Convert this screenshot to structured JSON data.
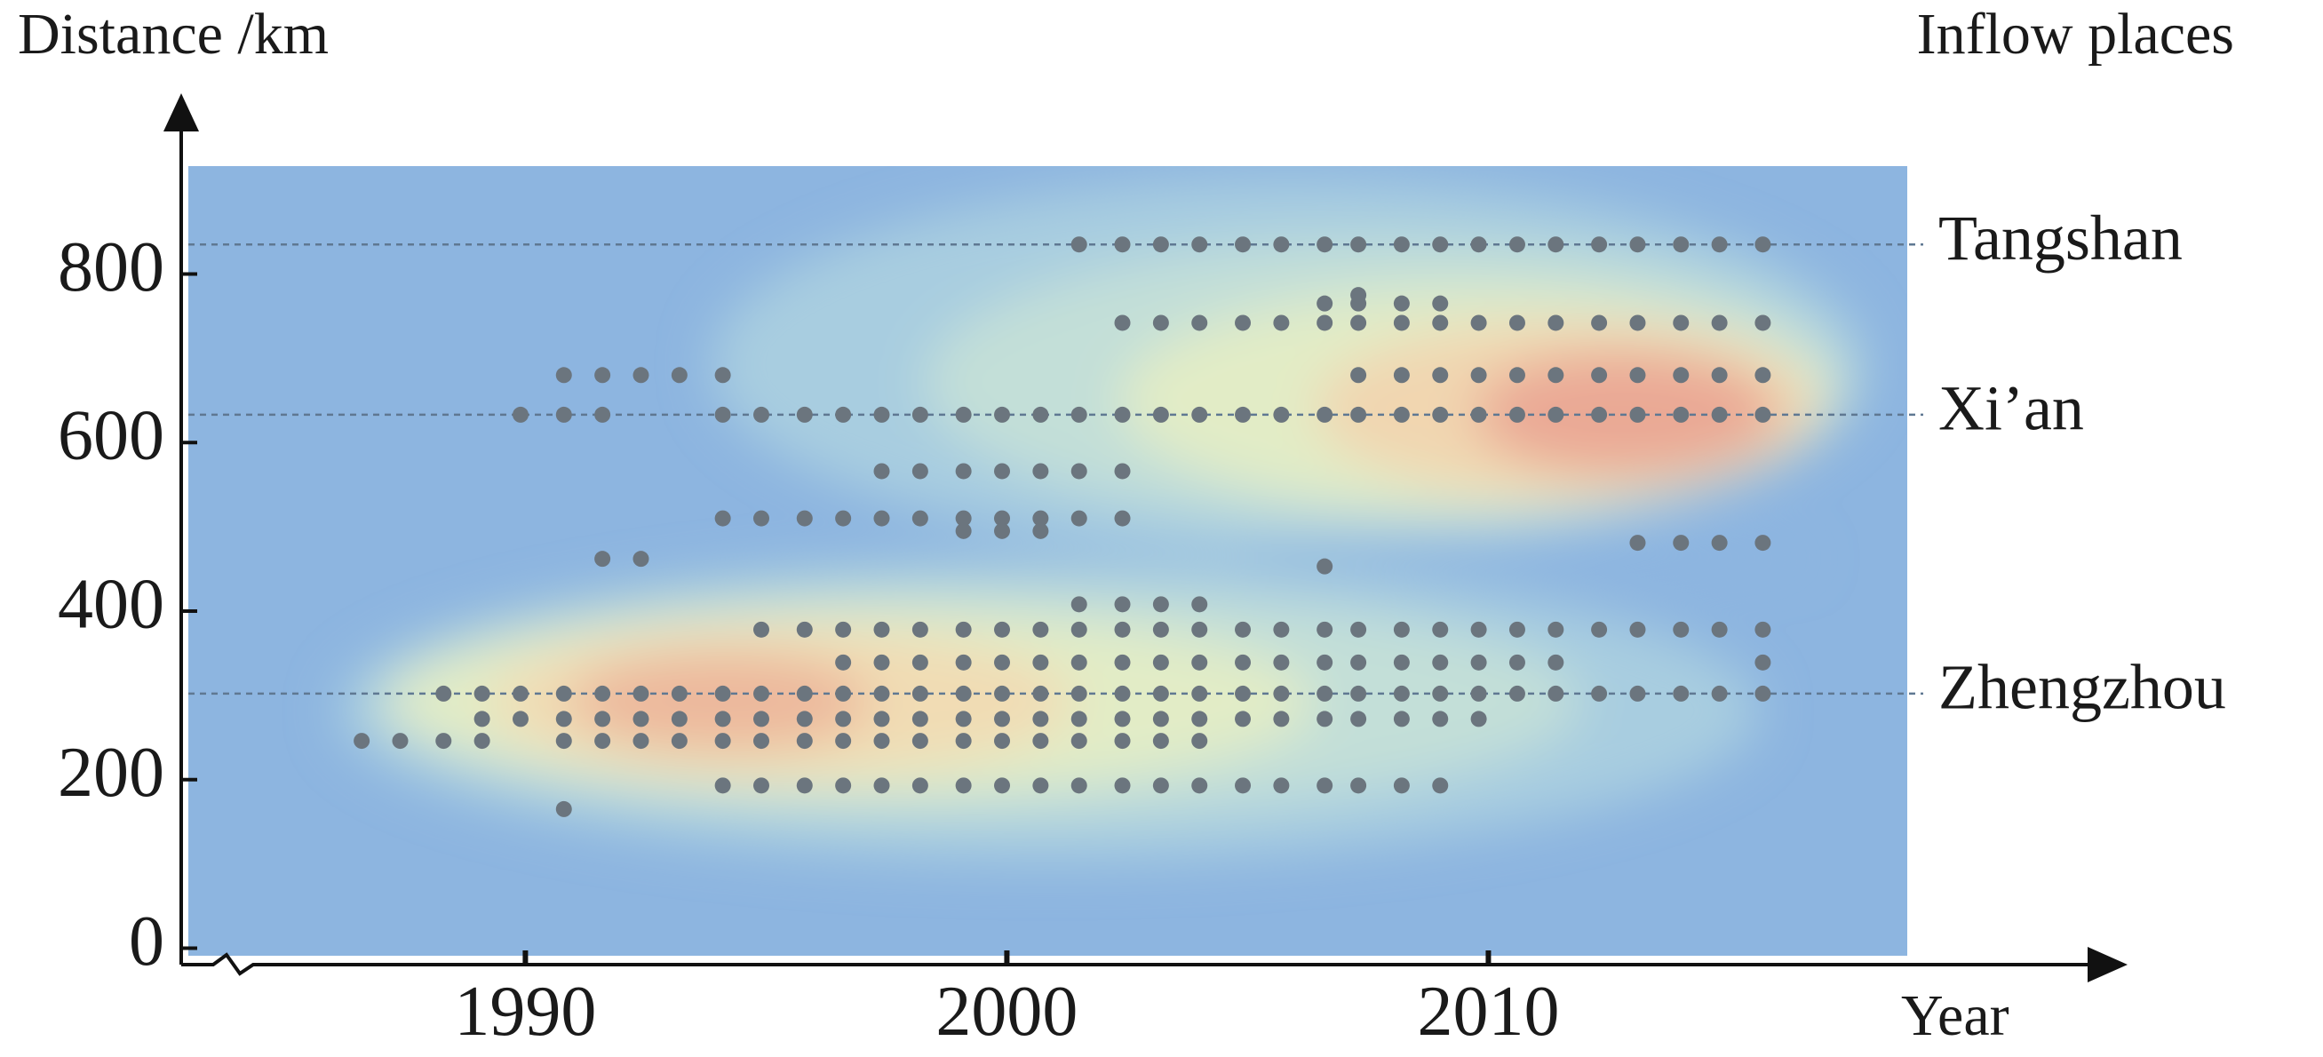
{
  "chart_data": {
    "type": "scatter",
    "y_label": "Distance /km",
    "x_label": "Year",
    "right_label": "Inflow places",
    "xlim": [
      1983.0,
      2018.7
    ],
    "ylim": [
      -9,
      928
    ],
    "xticks": [
      1990,
      2000,
      2010
    ],
    "yticks": [
      0,
      200,
      400,
      600,
      800
    ],
    "color": "#6b757e",
    "background": "#8db5e0",
    "reference_lines": [
      {
        "label": "Tangshan",
        "value": 835
      },
      {
        "label": "Xi’an",
        "value": 633
      },
      {
        "label": "Zhengzhou",
        "value": 302
      }
    ],
    "series": [
      {
        "x": [
          2001.5,
          2002.4,
          2003.2,
          2004.0,
          2004.9,
          2005.7,
          2006.6,
          2007.3,
          2008.2,
          2009.0,
          2009.8,
          2010.6,
          2011.4,
          2012.3,
          2013.1,
          2014.0,
          2014.8,
          2015.7
        ],
        "values": [
          835,
          835,
          835,
          835,
          835,
          835,
          835,
          835,
          835,
          835,
          835,
          835,
          835,
          835,
          835,
          835,
          835,
          835
        ]
      },
      {
        "x": [
          2002.4,
          2003.2,
          2004.0,
          2004.9,
          2005.7,
          2006.6,
          2007.3,
          2008.2,
          2009.0,
          2009.8,
          2010.6,
          2011.4,
          2012.3,
          2013.1,
          2014.0,
          2014.8,
          2015.7
        ],
        "values": [
          742,
          742,
          742,
          742,
          742,
          742,
          742,
          742,
          742,
          742,
          742,
          742,
          742,
          742,
          742,
          742,
          742
        ]
      },
      {
        "x": [
          2006.6,
          2007.3,
          2008.2,
          2009.0
        ],
        "values": [
          765,
          765,
          765,
          765
        ]
      },
      {
        "x": [
          2007.3
        ],
        "values": [
          775
        ]
      },
      {
        "x": [
          1990.8,
          1991.6,
          1992.4,
          1993.2,
          1994.1,
          2007.3,
          2008.2,
          2009.0,
          2009.8,
          2010.6,
          2011.4,
          2012.3,
          2013.1,
          2014.0,
          2014.8,
          2015.7
        ],
        "values": [
          680,
          680,
          680,
          680,
          680,
          680,
          680,
          680,
          680,
          680,
          680,
          680,
          680,
          680,
          680,
          680
        ]
      },
      {
        "x": [
          1989.9,
          1990.8,
          1991.6,
          1994.1,
          1994.9,
          1995.8,
          1996.6,
          1997.4,
          1998.2,
          1999.1,
          1999.9,
          2000.7,
          2001.5,
          2002.4,
          2003.2,
          2004.0,
          2004.9,
          2005.7,
          2006.6,
          2007.3,
          2008.2,
          2009.0,
          2009.8,
          2010.6,
          2011.4,
          2012.3,
          2013.1,
          2014.0,
          2014.8,
          2015.7
        ],
        "values": [
          633,
          633,
          633,
          633,
          633,
          633,
          633,
          633,
          633,
          633,
          633,
          633,
          633,
          633,
          633,
          633,
          633,
          633,
          633,
          633,
          633,
          633,
          633,
          633,
          633,
          633,
          633,
          633,
          633,
          633
        ]
      },
      {
        "x": [
          1997.4,
          1998.2,
          1999.1,
          1999.9,
          2000.7,
          2001.5,
          2002.4
        ],
        "values": [
          566,
          566,
          566,
          566,
          566,
          566,
          566
        ]
      },
      {
        "x": [
          1994.1,
          1994.9,
          1995.8,
          1996.6,
          1997.4,
          1998.2,
          1999.1,
          1999.9,
          2000.7,
          2001.5,
          2002.4
        ],
        "values": [
          510,
          510,
          510,
          510,
          510,
          510,
          510,
          510,
          510,
          510,
          510
        ]
      },
      {
        "x": [
          1999.1,
          1999.9,
          2000.7
        ],
        "values": [
          495,
          495,
          495
        ]
      },
      {
        "x": [
          2013.1,
          2014.0,
          2014.8,
          2015.7
        ],
        "values": [
          481,
          481,
          481,
          481
        ]
      },
      {
        "x": [
          1991.6,
          1992.4
        ],
        "values": [
          462,
          462
        ]
      },
      {
        "x": [
          2006.6
        ],
        "values": [
          453
        ]
      },
      {
        "x": [
          2001.5,
          2002.4,
          2003.2,
          2004.0
        ],
        "values": [
          408,
          408,
          408,
          408
        ]
      },
      {
        "x": [
          1994.9,
          1995.8,
          1996.6,
          1997.4,
          1998.2,
          1999.1,
          1999.9,
          2000.7,
          2001.5,
          2002.4,
          2003.2,
          2004.0,
          2004.9,
          2005.7,
          2006.6,
          2007.3,
          2008.2,
          2009.0,
          2009.8,
          2010.6,
          2011.4,
          2012.3,
          2013.1,
          2014.0,
          2014.8,
          2015.7
        ],
        "values": [
          378,
          378,
          378,
          378,
          378,
          378,
          378,
          378,
          378,
          378,
          378,
          378,
          378,
          378,
          378,
          378,
          378,
          378,
          378,
          378,
          378,
          378,
          378,
          378,
          378,
          378
        ]
      },
      {
        "x": [
          1996.6,
          1997.4,
          1998.2,
          1999.1,
          1999.9,
          2000.7,
          2001.5,
          2002.4,
          2003.2,
          2004.0,
          2004.9,
          2005.7,
          2006.6,
          2007.3,
          2008.2,
          2009.0,
          2009.8,
          2010.6,
          2011.4,
          2015.7
        ],
        "values": [
          339,
          339,
          339,
          339,
          339,
          339,
          339,
          339,
          339,
          339,
          339,
          339,
          339,
          339,
          339,
          339,
          339,
          339,
          339,
          339
        ]
      },
      {
        "x": [
          1988.3,
          1989.1,
          1989.9,
          1990.8,
          1991.6,
          1992.4,
          1993.2,
          1994.1,
          1994.9,
          1995.8,
          1996.6,
          1997.4,
          1998.2,
          1999.1,
          1999.9,
          2000.7,
          2001.5,
          2002.4,
          2003.2,
          2004.0,
          2004.9,
          2005.7,
          2006.6,
          2007.3,
          2008.2,
          2009.0,
          2009.8,
          2010.6,
          2011.4,
          2012.3,
          2013.1,
          2014.0,
          2014.8,
          2015.7
        ],
        "values": [
          302,
          302,
          302,
          302,
          302,
          302,
          302,
          302,
          302,
          302,
          302,
          302,
          302,
          302,
          302,
          302,
          302,
          302,
          302,
          302,
          302,
          302,
          302,
          302,
          302,
          302,
          302,
          302,
          302,
          302,
          302,
          302,
          302,
          302
        ]
      },
      {
        "x": [
          1989.1,
          1989.9,
          1990.8,
          1991.6,
          1992.4,
          1993.2,
          1994.1,
          1994.9,
          1995.8,
          1996.6,
          1997.4,
          1998.2,
          1999.1,
          1999.9,
          2000.7,
          2001.5,
          2002.4,
          2003.2,
          2004.0,
          2004.9,
          2005.7,
          2006.6,
          2007.3,
          2008.2,
          2009.0,
          2009.8
        ],
        "values": [
          272,
          272,
          272,
          272,
          272,
          272,
          272,
          272,
          272,
          272,
          272,
          272,
          272,
          272,
          272,
          272,
          272,
          272,
          272,
          272,
          272,
          272,
          272,
          272,
          272,
          272
        ]
      },
      {
        "x": [
          1986.6,
          1987.4,
          1988.3,
          1989.1,
          1990.8,
          1991.6,
          1992.4,
          1993.2,
          1994.1,
          1994.9,
          1995.8,
          1996.6,
          1997.4,
          1998.2,
          1999.1,
          1999.9,
          2000.7,
          2001.5,
          2002.4,
          2003.2,
          2004.0
        ],
        "values": [
          246,
          246,
          246,
          246,
          246,
          246,
          246,
          246,
          246,
          246,
          246,
          246,
          246,
          246,
          246,
          246,
          246,
          246,
          246,
          246,
          246
        ]
      },
      {
        "x": [
          1994.1,
          1994.9,
          1995.8,
          1996.6,
          1997.4,
          1998.2,
          1999.1,
          1999.9,
          2000.7,
          2001.5,
          2002.4,
          2003.2,
          2004.0,
          2004.9,
          2005.7,
          2006.6,
          2007.3,
          2008.2,
          2009.0
        ],
        "values": [
          193,
          193,
          193,
          193,
          193,
          193,
          193,
          193,
          193,
          193,
          193,
          193,
          193,
          193,
          193,
          193,
          193,
          193,
          193
        ]
      },
      {
        "x": [
          1990.8
        ],
        "values": [
          165
        ]
      }
    ]
  }
}
